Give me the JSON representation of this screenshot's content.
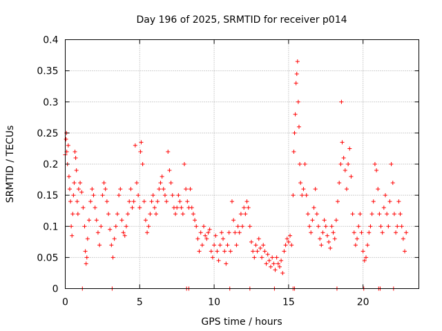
{
  "chart_data": {
    "type": "scatter",
    "title": "Day 196 of 2025, SRMTID for receiver p014",
    "xlabel": "GPS time / hours",
    "ylabel": "SRMTID / TECUs",
    "xlim": [
      0,
      23.75
    ],
    "ylim": [
      0,
      0.4
    ],
    "xticks": [
      0,
      5,
      10,
      15,
      20
    ],
    "yticks": [
      0,
      0.05,
      0.1,
      0.15,
      0.2,
      0.25,
      0.3,
      0.35,
      0.4
    ],
    "xtick_labels": [
      "0",
      "5",
      "10",
      "15",
      "20"
    ],
    "ytick_labels": [
      "0",
      "0.05",
      "0.1",
      "0.15",
      "0.2",
      "0.25",
      "0.3",
      "0.35",
      "0.4"
    ],
    "grid": true,
    "marker": "plus",
    "series": [
      {
        "name": "SRMTID p014",
        "color": "#ff0000",
        "points": [
          [
            0.0,
            0.215
          ],
          [
            0.05,
            0.24
          ],
          [
            0.08,
            0.25
          ],
          [
            0.1,
            0.22
          ],
          [
            0.15,
            0.2
          ],
          [
            0.2,
            0.23
          ],
          [
            0.25,
            0.18
          ],
          [
            0.3,
            0.16
          ],
          [
            0.35,
            0.14
          ],
          [
            0.4,
            0.1
          ],
          [
            0.45,
            0.085
          ],
          [
            0.5,
            0.12
          ],
          [
            0.55,
            0.15
          ],
          [
            0.6,
            0.17
          ],
          [
            0.65,
            0.22
          ],
          [
            0.7,
            0.21
          ],
          [
            0.75,
            0.19
          ],
          [
            0.8,
            0.14
          ],
          [
            0.85,
            0.12
          ],
          [
            0.9,
            0.16
          ],
          [
            1.0,
            0.17
          ],
          [
            1.1,
            0.155
          ],
          [
            1.2,
            0.13
          ],
          [
            1.3,
            0.1
          ],
          [
            1.35,
            0.06
          ],
          [
            1.4,
            0.04
          ],
          [
            1.45,
            0.05
          ],
          [
            1.5,
            0.08
          ],
          [
            1.6,
            0.11
          ],
          [
            1.7,
            0.14
          ],
          [
            1.8,
            0.16
          ],
          [
            1.9,
            0.15
          ],
          [
            2.0,
            0.13
          ],
          [
            2.1,
            0.11
          ],
          [
            2.2,
            0.09
          ],
          [
            2.3,
            0.07
          ],
          [
            2.4,
            0.1
          ],
          [
            2.5,
            0.15
          ],
          [
            2.6,
            0.17
          ],
          [
            2.7,
            0.16
          ],
          [
            2.8,
            0.14
          ],
          [
            2.9,
            0.12
          ],
          [
            3.0,
            0.095
          ],
          [
            3.1,
            0.07
          ],
          [
            3.2,
            0.05
          ],
          [
            3.3,
            0.08
          ],
          [
            3.4,
            0.1
          ],
          [
            3.5,
            0.12
          ],
          [
            3.6,
            0.15
          ],
          [
            3.7,
            0.16
          ],
          [
            3.8,
            0.11
          ],
          [
            3.9,
            0.09
          ],
          [
            4.0,
            0.085
          ],
          [
            4.1,
            0.1
          ],
          [
            4.2,
            0.12
          ],
          [
            4.3,
            0.14
          ],
          [
            4.4,
            0.16
          ],
          [
            4.5,
            0.13
          ],
          [
            4.6,
            0.14
          ],
          [
            4.7,
            0.23
          ],
          [
            4.8,
            0.17
          ],
          [
            4.9,
            0.15
          ],
          [
            5.0,
            0.13
          ],
          [
            5.05,
            0.22
          ],
          [
            5.1,
            0.235
          ],
          [
            5.2,
            0.2
          ],
          [
            5.3,
            0.14
          ],
          [
            5.4,
            0.11
          ],
          [
            5.5,
            0.09
          ],
          [
            5.6,
            0.1
          ],
          [
            5.7,
            0.12
          ],
          [
            5.8,
            0.14
          ],
          [
            5.9,
            0.15
          ],
          [
            6.0,
            0.13
          ],
          [
            6.1,
            0.12
          ],
          [
            6.2,
            0.14
          ],
          [
            6.3,
            0.16
          ],
          [
            6.4,
            0.17
          ],
          [
            6.5,
            0.18
          ],
          [
            6.6,
            0.16
          ],
          [
            6.7,
            0.15
          ],
          [
            6.8,
            0.14
          ],
          [
            6.9,
            0.22
          ],
          [
            7.0,
            0.19
          ],
          [
            7.1,
            0.17
          ],
          [
            7.2,
            0.15
          ],
          [
            7.3,
            0.13
          ],
          [
            7.4,
            0.12
          ],
          [
            7.5,
            0.13
          ],
          [
            7.6,
            0.15
          ],
          [
            7.7,
            0.14
          ],
          [
            7.8,
            0.13
          ],
          [
            7.9,
            0.12
          ],
          [
            8.0,
            0.2
          ],
          [
            8.1,
            0.16
          ],
          [
            8.2,
            0.14
          ],
          [
            8.3,
            0.13
          ],
          [
            8.4,
            0.16
          ],
          [
            8.5,
            0.13
          ],
          [
            8.6,
            0.12
          ],
          [
            8.7,
            0.11
          ],
          [
            8.8,
            0.1
          ],
          [
            8.9,
            0.08
          ],
          [
            9.0,
            0.06
          ],
          [
            9.1,
            0.09
          ],
          [
            9.2,
            0.07
          ],
          [
            9.3,
            0.1
          ],
          [
            9.4,
            0.085
          ],
          [
            9.5,
            0.08
          ],
          [
            9.6,
            0.09
          ],
          [
            9.7,
            0.095
          ],
          [
            9.8,
            0.06
          ],
          [
            9.9,
            0.05
          ],
          [
            10.0,
            0.07
          ],
          [
            10.1,
            0.085
          ],
          [
            10.2,
            0.06
          ],
          [
            10.3,
            0.045
          ],
          [
            10.4,
            0.07
          ],
          [
            10.5,
            0.09
          ],
          [
            10.6,
            0.08
          ],
          [
            10.7,
            0.06
          ],
          [
            10.8,
            0.04
          ],
          [
            10.9,
            0.07
          ],
          [
            11.0,
            0.09
          ],
          [
            11.1,
            0.06
          ],
          [
            11.2,
            0.14
          ],
          [
            11.3,
            0.11
          ],
          [
            11.4,
            0.09
          ],
          [
            11.5,
            0.07
          ],
          [
            11.6,
            0.1
          ],
          [
            11.7,
            0.09
          ],
          [
            11.8,
            0.12
          ],
          [
            11.9,
            0.1
          ],
          [
            12.0,
            0.13
          ],
          [
            12.1,
            0.12
          ],
          [
            12.2,
            0.14
          ],
          [
            12.3,
            0.13
          ],
          [
            12.4,
            0.1
          ],
          [
            12.5,
            0.075
          ],
          [
            12.6,
            0.06
          ],
          [
            12.7,
            0.05
          ],
          [
            12.8,
            0.07
          ],
          [
            12.9,
            0.06
          ],
          [
            13.0,
            0.08
          ],
          [
            13.1,
            0.065
          ],
          [
            13.2,
            0.05
          ],
          [
            13.3,
            0.07
          ],
          [
            13.4,
            0.06
          ],
          [
            13.5,
            0.04
          ],
          [
            13.6,
            0.055
          ],
          [
            13.7,
            0.045
          ],
          [
            13.8,
            0.035
          ],
          [
            13.9,
            0.05
          ],
          [
            14.0,
            0.04
          ],
          [
            14.1,
            0.03
          ],
          [
            14.2,
            0.05
          ],
          [
            14.3,
            0.04
          ],
          [
            14.4,
            0.035
          ],
          [
            14.5,
            0.045
          ],
          [
            14.6,
            0.025
          ],
          [
            14.7,
            0.06
          ],
          [
            14.8,
            0.07
          ],
          [
            14.9,
            0.08
          ],
          [
            15.0,
            0.075
          ],
          [
            15.1,
            0.085
          ],
          [
            15.2,
            0.07
          ],
          [
            15.3,
            0.15
          ],
          [
            15.35,
            0.22
          ],
          [
            15.4,
            0.25
          ],
          [
            15.45,
            0.28
          ],
          [
            15.5,
            0.33
          ],
          [
            15.55,
            0.345
          ],
          [
            15.6,
            0.365
          ],
          [
            15.65,
            0.3
          ],
          [
            15.7,
            0.26
          ],
          [
            15.75,
            0.2
          ],
          [
            15.8,
            0.17
          ],
          [
            15.9,
            0.15
          ],
          [
            16.0,
            0.16
          ],
          [
            16.1,
            0.2
          ],
          [
            16.2,
            0.15
          ],
          [
            16.3,
            0.12
          ],
          [
            16.4,
            0.1
          ],
          [
            16.5,
            0.09
          ],
          [
            16.6,
            0.11
          ],
          [
            16.7,
            0.13
          ],
          [
            16.8,
            0.16
          ],
          [
            16.9,
            0.12
          ],
          [
            17.0,
            0.1
          ],
          [
            17.1,
            0.08
          ],
          [
            17.2,
            0.07
          ],
          [
            17.3,
            0.09
          ],
          [
            17.4,
            0.11
          ],
          [
            17.5,
            0.1
          ],
          [
            17.6,
            0.085
          ],
          [
            17.7,
            0.075
          ],
          [
            17.8,
            0.065
          ],
          [
            17.9,
            0.1
          ],
          [
            18.0,
            0.09
          ],
          [
            18.1,
            0.08
          ],
          [
            18.2,
            0.11
          ],
          [
            18.3,
            0.14
          ],
          [
            18.4,
            0.17
          ],
          [
            18.5,
            0.2
          ],
          [
            18.55,
            0.3
          ],
          [
            18.6,
            0.235
          ],
          [
            18.7,
            0.21
          ],
          [
            18.8,
            0.19
          ],
          [
            18.9,
            0.16
          ],
          [
            19.0,
            0.2
          ],
          [
            19.1,
            0.225
          ],
          [
            19.2,
            0.18
          ],
          [
            19.3,
            0.12
          ],
          [
            19.4,
            0.09
          ],
          [
            19.5,
            0.07
          ],
          [
            19.6,
            0.08
          ],
          [
            19.7,
            0.1
          ],
          [
            19.8,
            0.12
          ],
          [
            19.9,
            0.09
          ],
          [
            20.0,
            0.06
          ],
          [
            20.1,
            0.045
          ],
          [
            20.2,
            0.05
          ],
          [
            20.3,
            0.07
          ],
          [
            20.4,
            0.09
          ],
          [
            20.5,
            0.1
          ],
          [
            20.6,
            0.12
          ],
          [
            20.7,
            0.14
          ],
          [
            20.8,
            0.2
          ],
          [
            20.9,
            0.19
          ],
          [
            21.0,
            0.16
          ],
          [
            21.1,
            0.12
          ],
          [
            21.2,
            0.1
          ],
          [
            21.3,
            0.09
          ],
          [
            21.4,
            0.13
          ],
          [
            21.5,
            0.15
          ],
          [
            21.6,
            0.12
          ],
          [
            21.7,
            0.1
          ],
          [
            21.8,
            0.14
          ],
          [
            21.9,
            0.2
          ],
          [
            22.0,
            0.17
          ],
          [
            22.1,
            0.12
          ],
          [
            22.2,
            0.09
          ],
          [
            22.3,
            0.1
          ],
          [
            22.4,
            0.14
          ],
          [
            22.5,
            0.12
          ],
          [
            22.6,
            0.1
          ],
          [
            22.7,
            0.08
          ],
          [
            22.8,
            0.06
          ],
          [
            22.9,
            0.09
          ],
          [
            1.15,
            0.0
          ],
          [
            3.15,
            0.0
          ],
          [
            8.15,
            0.0
          ],
          [
            8.3,
            0.0
          ],
          [
            11.05,
            0.0
          ],
          [
            12.4,
            0.0
          ],
          [
            14.05,
            0.0
          ],
          [
            15.3,
            0.0
          ],
          [
            15.4,
            0.0
          ],
          [
            18.25,
            0.0
          ],
          [
            20.05,
            0.0
          ],
          [
            21.05,
            0.0
          ],
          [
            21.15,
            0.0
          ],
          [
            22.05,
            0.0
          ]
        ]
      }
    ]
  }
}
